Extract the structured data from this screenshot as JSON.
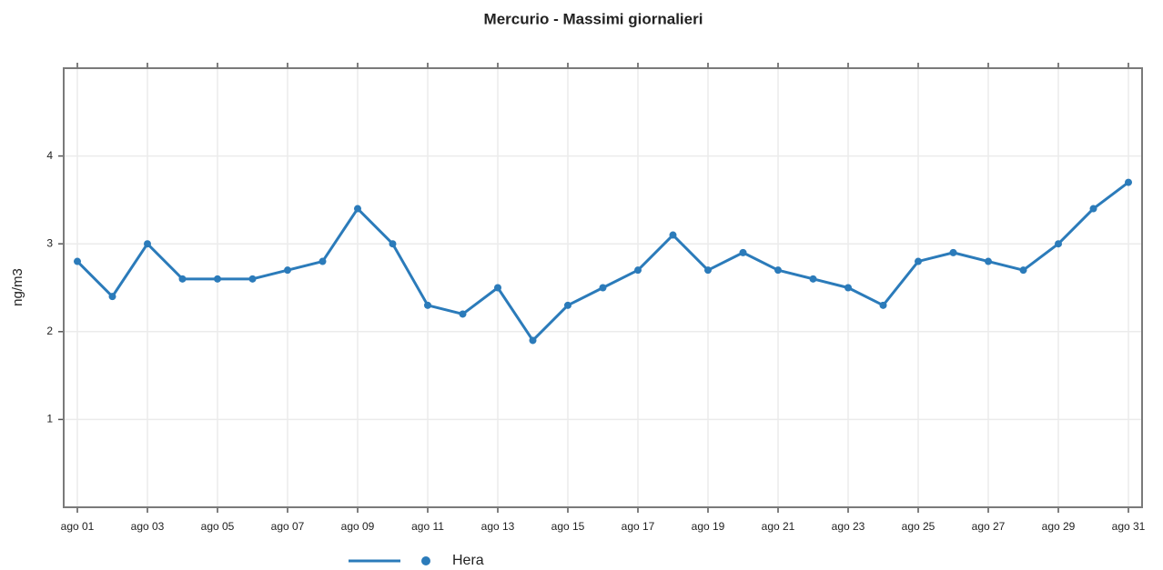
{
  "chart_data": {
    "type": "line",
    "title": "Mercurio - Massimi giornalieri",
    "ylabel": "ng/m3",
    "categories": [
      "ago 01",
      null,
      "ago 03",
      null,
      "ago 05",
      null,
      "ago 07",
      null,
      "ago 09",
      null,
      "ago 11",
      null,
      "ago 13",
      null,
      "ago 15",
      null,
      "ago 17",
      null,
      "ago 19",
      null,
      "ago 21",
      null,
      "ago 23",
      null,
      "ago 25",
      null,
      "ago 27",
      null,
      "ago 29",
      null,
      "ago 31"
    ],
    "series": [
      {
        "name": "Hera",
        "color": "#2b7bba",
        "values": [
          2.8,
          2.4,
          3.0,
          2.6,
          2.6,
          2.6,
          2.7,
          2.8,
          3.4,
          3.0,
          2.3,
          2.2,
          2.5,
          1.9,
          2.3,
          2.5,
          2.7,
          3.1,
          2.7,
          2.9,
          2.7,
          2.6,
          2.5,
          2.3,
          2.8,
          2.9,
          2.8,
          2.7,
          3.0,
          3.4,
          3.7
        ]
      }
    ],
    "ylim": [
      0,
      5
    ],
    "yticks": [
      1,
      2,
      3,
      4
    ],
    "grid": true,
    "legend": "bottom"
  }
}
